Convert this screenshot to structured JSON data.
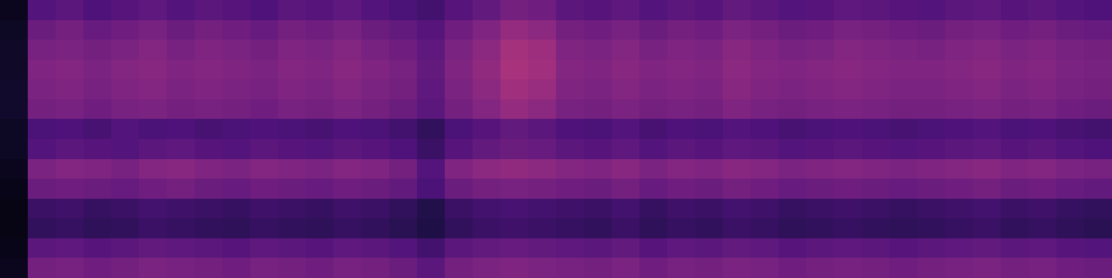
{
  "chart_data": {
    "type": "heatmap",
    "zlim": [
      0,
      100
    ],
    "tick_labels": false,
    "grid": false,
    "cells": [
      [
        5,
        26,
        28,
        25,
        27,
        29,
        26,
        28,
        27,
        25,
        28,
        27,
        29,
        26,
        24,
        22,
        27,
        30,
        34,
        33,
        28,
        27,
        29,
        26,
        28,
        27,
        30,
        28,
        26,
        27,
        29,
        28,
        27,
        26,
        28,
        29,
        27,
        28,
        26,
        25
      ],
      [
        6,
        32,
        34,
        31,
        33,
        35,
        32,
        34,
        33,
        31,
        34,
        33,
        35,
        32,
        30,
        27,
        33,
        37,
        42,
        40,
        34,
        33,
        35,
        32,
        34,
        33,
        36,
        34,
        32,
        33,
        35,
        34,
        33,
        32,
        34,
        35,
        33,
        34,
        32,
        31
      ],
      [
        7,
        35,
        36,
        34,
        36,
        38,
        35,
        37,
        36,
        34,
        37,
        36,
        38,
        35,
        33,
        29,
        36,
        40,
        46,
        44,
        37,
        36,
        38,
        35,
        37,
        36,
        39,
        37,
        35,
        36,
        38,
        37,
        36,
        35,
        37,
        38,
        36,
        37,
        35,
        34
      ],
      [
        7,
        37,
        38,
        36,
        38,
        39,
        37,
        38,
        37,
        36,
        38,
        37,
        39,
        37,
        35,
        30,
        37,
        41,
        47,
        45,
        38,
        37,
        39,
        37,
        38,
        37,
        40,
        38,
        37,
        38,
        39,
        38,
        37,
        37,
        38,
        39,
        37,
        38,
        36,
        35
      ],
      [
        8,
        36,
        37,
        35,
        37,
        38,
        36,
        37,
        36,
        35,
        37,
        36,
        38,
        36,
        34,
        29,
        36,
        40,
        45,
        43,
        37,
        36,
        38,
        36,
        37,
        36,
        39,
        37,
        36,
        37,
        38,
        37,
        36,
        36,
        37,
        38,
        36,
        37,
        35,
        34
      ],
      [
        8,
        34,
        35,
        33,
        35,
        36,
        34,
        35,
        34,
        33,
        35,
        34,
        36,
        34,
        32,
        28,
        34,
        38,
        42,
        40,
        35,
        34,
        36,
        34,
        35,
        34,
        37,
        35,
        34,
        35,
        36,
        35,
        34,
        34,
        35,
        36,
        34,
        35,
        33,
        32
      ],
      [
        6,
        24,
        25,
        23,
        26,
        24,
        25,
        23,
        24,
        25,
        24,
        23,
        25,
        24,
        22,
        18,
        24,
        27,
        30,
        28,
        25,
        24,
        26,
        23,
        25,
        24,
        26,
        25,
        23,
        24,
        25,
        24,
        23,
        24,
        25,
        26,
        24,
        25,
        23,
        22
      ],
      [
        6,
        26,
        28,
        27,
        26,
        28,
        29,
        27,
        26,
        28,
        27,
        26,
        28,
        27,
        25,
        20,
        27,
        30,
        32,
        31,
        28,
        27,
        29,
        26,
        28,
        27,
        29,
        28,
        26,
        27,
        28,
        27,
        26,
        27,
        28,
        29,
        27,
        28,
        26,
        25
      ],
      [
        5,
        36,
        38,
        37,
        35,
        38,
        39,
        37,
        36,
        38,
        37,
        36,
        38,
        37,
        34,
        26,
        37,
        40,
        41,
        40,
        38,
        37,
        39,
        36,
        38,
        37,
        39,
        38,
        36,
        37,
        38,
        37,
        36,
        37,
        38,
        39,
        37,
        38,
        36,
        35
      ],
      [
        4,
        32,
        33,
        32,
        31,
        33,
        34,
        32,
        31,
        33,
        32,
        31,
        33,
        32,
        30,
        24,
        32,
        34,
        35,
        34,
        33,
        32,
        34,
        31,
        33,
        32,
        34,
        33,
        31,
        32,
        33,
        32,
        31,
        32,
        33,
        34,
        32,
        33,
        31,
        30
      ],
      [
        3,
        20,
        21,
        19,
        20,
        22,
        21,
        20,
        19,
        21,
        20,
        19,
        21,
        20,
        18,
        14,
        20,
        22,
        23,
        22,
        21,
        20,
        22,
        19,
        21,
        20,
        22,
        21,
        19,
        20,
        21,
        20,
        19,
        20,
        21,
        22,
        20,
        21,
        19,
        18
      ],
      [
        3,
        18,
        19,
        17,
        18,
        20,
        19,
        18,
        17,
        19,
        18,
        17,
        19,
        18,
        16,
        13,
        18,
        20,
        21,
        20,
        19,
        18,
        20,
        17,
        19,
        18,
        20,
        19,
        17,
        18,
        19,
        18,
        17,
        18,
        19,
        20,
        18,
        19,
        17,
        16
      ],
      [
        4,
        28,
        29,
        27,
        28,
        30,
        29,
        28,
        27,
        29,
        28,
        27,
        29,
        28,
        26,
        22,
        28,
        30,
        31,
        30,
        29,
        28,
        30,
        27,
        29,
        28,
        30,
        29,
        27,
        28,
        29,
        28,
        27,
        28,
        29,
        30,
        28,
        29,
        27,
        26
      ],
      [
        5,
        34,
        35,
        33,
        34,
        36,
        35,
        34,
        33,
        35,
        34,
        33,
        35,
        34,
        32,
        28,
        34,
        36,
        37,
        36,
        35,
        34,
        36,
        33,
        35,
        34,
        36,
        35,
        33,
        34,
        35,
        34,
        33,
        34,
        35,
        36,
        34,
        35,
        33,
        32
      ]
    ]
  }
}
